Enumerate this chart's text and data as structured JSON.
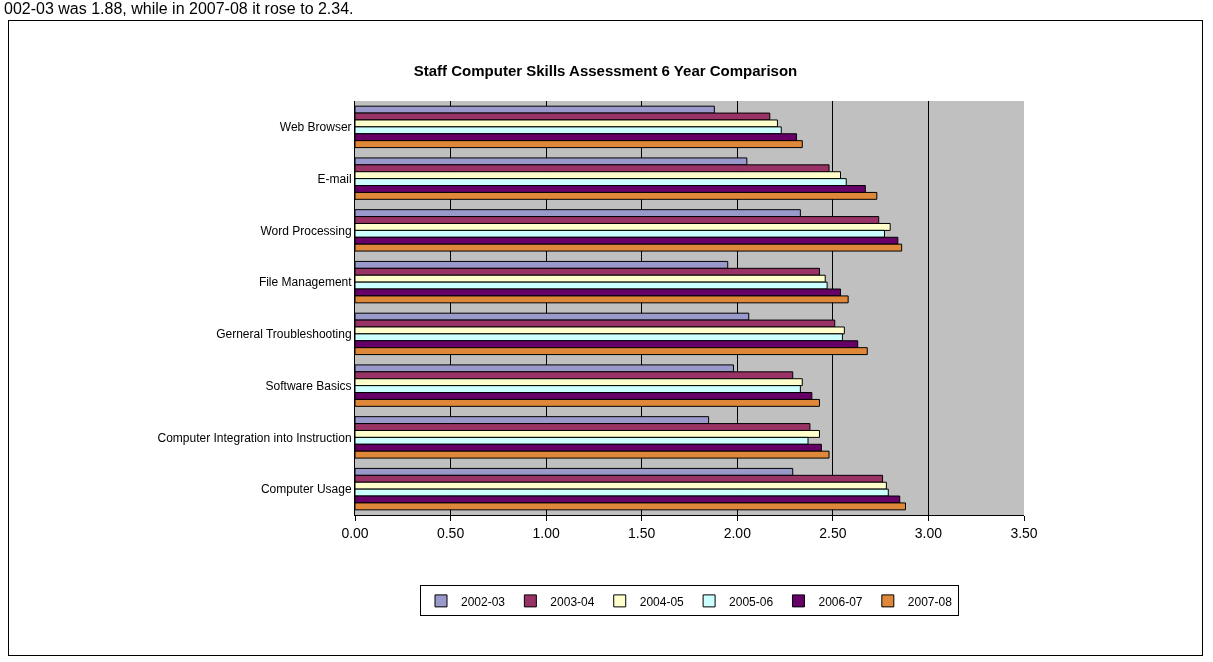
{
  "chart_data": {
    "type": "bar",
    "orientation": "horizontal",
    "title": "Staff Computer Skills Assessment 6 Year Comparison",
    "annotations": [
      "002-03 was 1.88, while in 2007-08 it rose to 2.34."
    ],
    "categories": [
      "Web Browser",
      "E-mail",
      "Word Processing",
      "File Management",
      "Gerneral Troubleshooting",
      "Software Basics",
      "Computer Integration into Instruction",
      "Computer Usage"
    ],
    "series": [
      {
        "name": "2002-03",
        "color": "#9999cc",
        "values": [
          1.88,
          2.05,
          2.33,
          1.95,
          2.06,
          1.98,
          1.85,
          2.29
        ]
      },
      {
        "name": "2003-04",
        "color": "#993366",
        "values": [
          2.17,
          2.48,
          2.74,
          2.43,
          2.51,
          2.29,
          2.38,
          2.76
        ]
      },
      {
        "name": "2004-05",
        "color": "#ffffcc",
        "values": [
          2.21,
          2.54,
          2.8,
          2.46,
          2.56,
          2.34,
          2.43,
          2.78
        ]
      },
      {
        "name": "2005-06",
        "color": "#ccffff",
        "values": [
          2.23,
          2.57,
          2.77,
          2.47,
          2.55,
          2.33,
          2.37,
          2.79
        ]
      },
      {
        "name": "2006-07",
        "color": "#660066",
        "values": [
          2.31,
          2.67,
          2.84,
          2.54,
          2.63,
          2.39,
          2.44,
          2.85
        ]
      },
      {
        "name": "2007-08",
        "color": "#e0883a",
        "values": [
          2.34,
          2.73,
          2.86,
          2.58,
          2.68,
          2.43,
          2.48,
          2.88
        ]
      }
    ],
    "xlim": [
      0,
      3.5
    ],
    "xticks": [
      {
        "value": 0,
        "label": "0.00"
      },
      {
        "value": 0.5,
        "label": "0.50"
      },
      {
        "value": 1,
        "label": "1.00"
      },
      {
        "value": 1.5,
        "label": "1.50"
      },
      {
        "value": 2,
        "label": "2.00"
      },
      {
        "value": 2.5,
        "label": "2.50"
      },
      {
        "value": 3,
        "label": "3.00"
      },
      {
        "value": 3.5,
        "label": "3.50"
      }
    ],
    "grid": "x",
    "legend": "bottom"
  }
}
